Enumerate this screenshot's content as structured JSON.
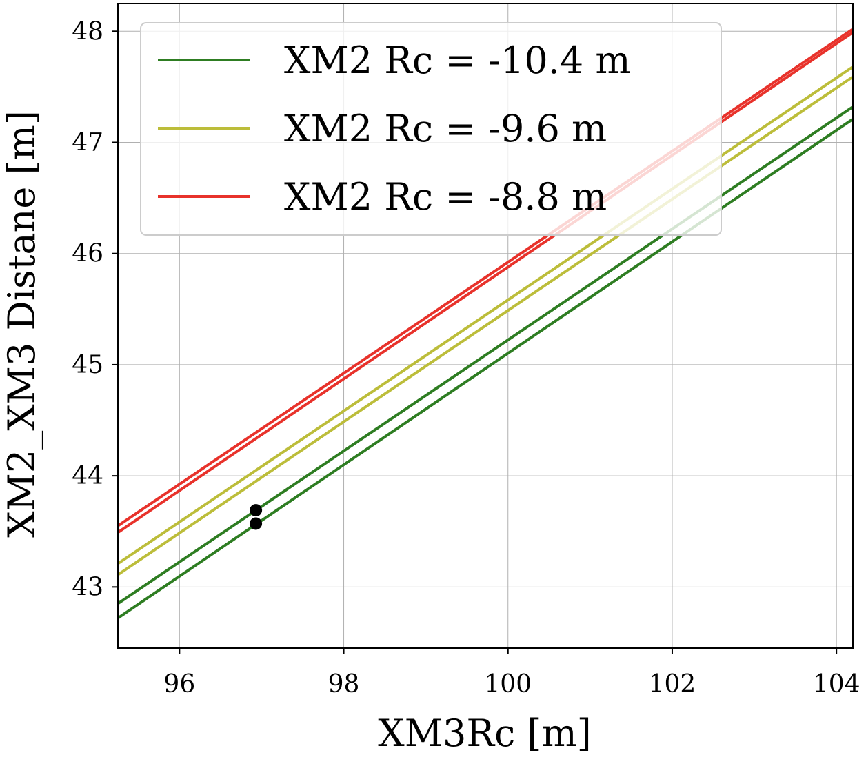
{
  "chart_data": {
    "type": "line",
    "title": "",
    "xlabel": "XM3Rc [m]",
    "ylabel": "XM2_XM3 Distane [m]",
    "xlim": [
      95.25,
      104.2
    ],
    "ylim": [
      42.45,
      48.25
    ],
    "xticks": [
      96,
      98,
      100,
      102,
      104
    ],
    "yticks": [
      43,
      44,
      45,
      46,
      47,
      48
    ],
    "xtick_labels": [
      "96",
      "98",
      "100",
      "102",
      "104"
    ],
    "ytick_labels": [
      "43",
      "44",
      "45",
      "46",
      "47",
      "48"
    ],
    "grid": true,
    "legend_position": "top-left",
    "series": [
      {
        "name": "XM2 Rc = -10.4 m",
        "color": "#2e7d22",
        "x": [
          95.25,
          104.2
        ],
        "y": [
          42.85,
          47.32
        ]
      },
      {
        "name": "",
        "color": "#2e7d22",
        "x": [
          95.25,
          104.2
        ],
        "y": [
          42.72,
          47.21
        ]
      },
      {
        "name": "XM2 Rc = -9.6 m",
        "color": "#bcbd3a",
        "x": [
          95.25,
          104.2
        ],
        "y": [
          43.21,
          47.68
        ]
      },
      {
        "name": "",
        "color": "#bcbd3a",
        "x": [
          95.25,
          104.2
        ],
        "y": [
          43.11,
          47.59
        ]
      },
      {
        "name": "XM2 Rc = -8.8 m",
        "color": "#e8322b",
        "x": [
          95.25,
          104.2
        ],
        "y": [
          43.55,
          48.02
        ]
      },
      {
        "name": "",
        "color": "#e8322b",
        "x": [
          95.25,
          104.2
        ],
        "y": [
          43.49,
          47.99
        ]
      }
    ],
    "points": [
      {
        "x": 96.93,
        "y": 43.69,
        "color": "#000000"
      },
      {
        "x": 96.93,
        "y": 43.57,
        "color": "#000000"
      }
    ],
    "legend": [
      {
        "label": "XM2 Rc = -10.4 m",
        "color": "#2e7d22"
      },
      {
        "label": "XM2 Rc = -9.6 m",
        "color": "#bcbd3a"
      },
      {
        "label": "XM2 Rc = -8.8 m",
        "color": "#e8322b"
      }
    ]
  }
}
